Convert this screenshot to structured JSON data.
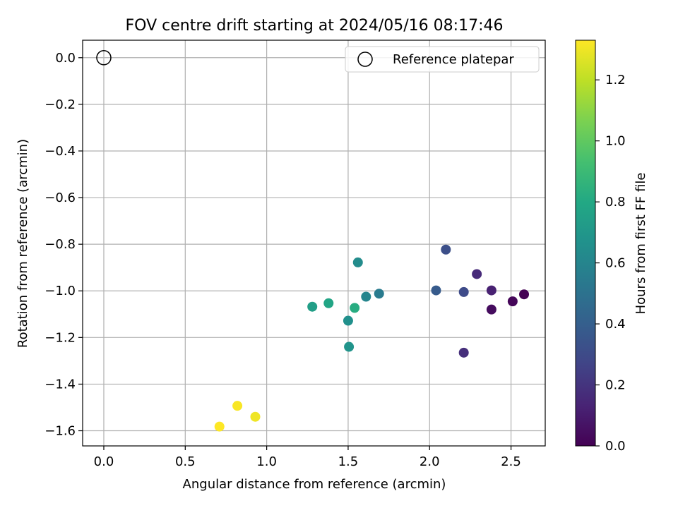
{
  "chart_data": {
    "type": "scatter",
    "title": "FOV centre drift starting at 2024/05/16 08:17:46",
    "xlabel": "Angular distance from reference (arcmin)",
    "ylabel": "Rotation from reference (arcmin)",
    "xlim": [
      -0.13,
      2.71
    ],
    "ylim": [
      -1.665,
      0.075
    ],
    "x_ticks": [
      0.0,
      0.5,
      1.0,
      1.5,
      2.0,
      2.5
    ],
    "x_tick_labels": [
      "0.0",
      "0.5",
      "1.0",
      "1.5",
      "2.0",
      "2.5"
    ],
    "y_ticks": [
      0.0,
      -0.2,
      -0.4,
      -0.6,
      -0.8,
      -1.0,
      -1.2,
      -1.4,
      -1.6
    ],
    "y_tick_labels": [
      "0.0",
      "−0.2",
      "−0.4",
      "−0.6",
      "−0.8",
      "−1.0",
      "−1.2",
      "−1.4",
      "−1.6"
    ],
    "grid": true,
    "legend": {
      "placement": "top-right",
      "entries": [
        "Reference platepar"
      ]
    },
    "reference_point": {
      "label": "Reference platepar",
      "x": 0.0,
      "y": 0.0
    },
    "colorbar": {
      "label": "Hours from first FF file",
      "range": [
        0.0,
        1.33
      ],
      "ticks": [
        0.0,
        0.2,
        0.4,
        0.6,
        0.8,
        1.0,
        1.2
      ],
      "tick_labels": [
        "0.0",
        "0.2",
        "0.4",
        "0.6",
        "0.8",
        "1.0",
        "1.2"
      ],
      "colormap": "viridis"
    },
    "points": [
      {
        "x": 2.58,
        "y": -1.015,
        "c": 0.0
      },
      {
        "x": 2.51,
        "y": -1.045,
        "c": 0.02
      },
      {
        "x": 2.38,
        "y": -1.08,
        "c": 0.04
      },
      {
        "x": 2.38,
        "y": -0.998,
        "c": 0.12
      },
      {
        "x": 2.29,
        "y": -0.928,
        "c": 0.16
      },
      {
        "x": 2.21,
        "y": -1.265,
        "c": 0.18
      },
      {
        "x": 2.21,
        "y": -1.005,
        "c": 0.3
      },
      {
        "x": 2.1,
        "y": -0.823,
        "c": 0.32
      },
      {
        "x": 2.04,
        "y": -0.998,
        "c": 0.38
      },
      {
        "x": 1.69,
        "y": -1.012,
        "c": 0.55
      },
      {
        "x": 1.61,
        "y": -1.025,
        "c": 0.6
      },
      {
        "x": 1.56,
        "y": -0.878,
        "c": 0.64
      },
      {
        "x": 1.5,
        "y": -1.128,
        "c": 0.66
      },
      {
        "x": 1.505,
        "y": -1.24,
        "c": 0.68
      },
      {
        "x": 1.54,
        "y": -1.073,
        "c": 0.82
      },
      {
        "x": 1.38,
        "y": -1.053,
        "c": 0.78
      },
      {
        "x": 1.28,
        "y": -1.068,
        "c": 0.74
      },
      {
        "x": 0.93,
        "y": -1.54,
        "c": 1.3
      },
      {
        "x": 0.82,
        "y": -1.493,
        "c": 1.32
      },
      {
        "x": 0.71,
        "y": -1.582,
        "c": 1.33
      }
    ]
  }
}
